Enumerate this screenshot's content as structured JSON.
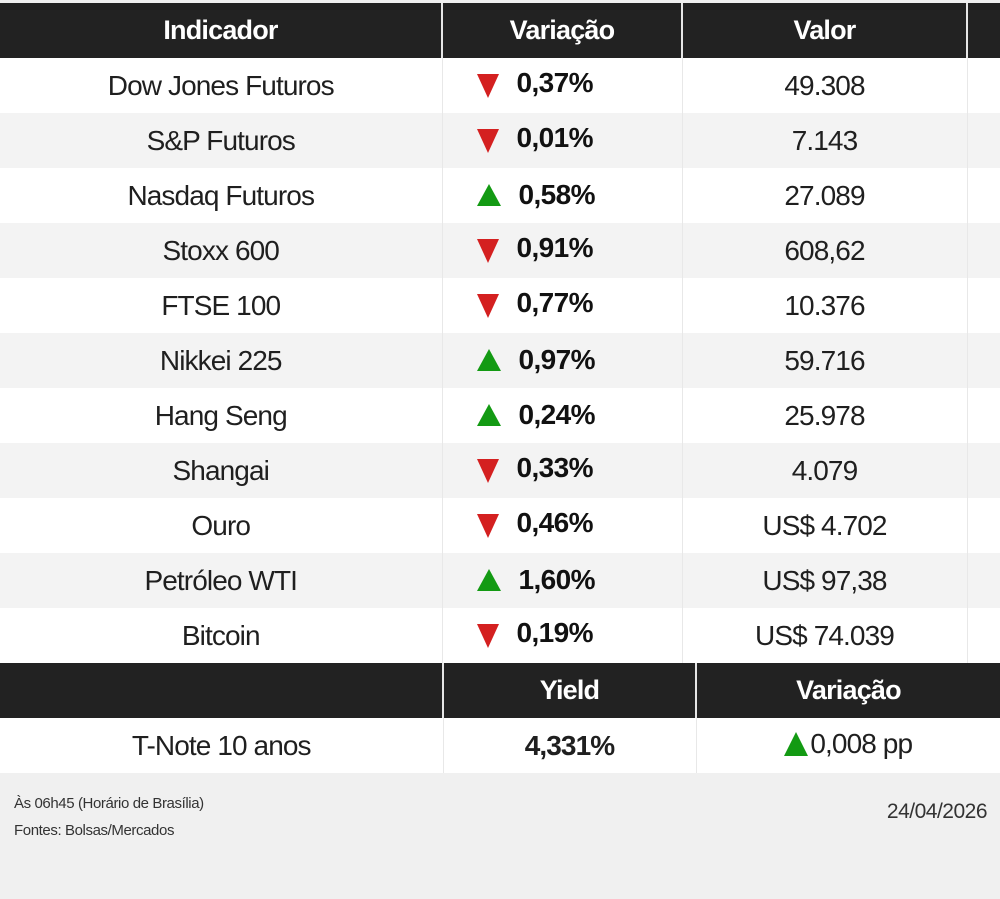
{
  "main_table": {
    "headers": [
      "Indicador",
      "Variação",
      "Valor",
      ""
    ],
    "rows": [
      {
        "indicator": "Dow Jones Futuros",
        "direction": "down",
        "change": "0,37%",
        "value": "49.308"
      },
      {
        "indicator": "S&P Futuros",
        "direction": "down",
        "change": "0,01%",
        "value": "7.143"
      },
      {
        "indicator": "Nasdaq Futuros",
        "direction": "up",
        "change": "0,58%",
        "value": "27.089"
      },
      {
        "indicator": "Stoxx 600",
        "direction": "down",
        "change": "0,91%",
        "value": "608,62"
      },
      {
        "indicator": "FTSE 100",
        "direction": "down",
        "change": "0,77%",
        "value": "10.376"
      },
      {
        "indicator": "Nikkei 225",
        "direction": "up",
        "change": "0,97%",
        "value": "59.716"
      },
      {
        "indicator": "Hang Seng",
        "direction": "up",
        "change": "0,24%",
        "value": "25.978"
      },
      {
        "indicator": "Shangai",
        "direction": "down",
        "change": "0,33%",
        "value": "4.079"
      },
      {
        "indicator": "Ouro",
        "direction": "down",
        "change": "0,46%",
        "value": "US$ 4.702"
      },
      {
        "indicator": "Petróleo WTI",
        "direction": "up",
        "change": "1,60%",
        "value": "US$ 97,38"
      },
      {
        "indicator": "Bitcoin",
        "direction": "down",
        "change": "0,19%",
        "value": "US$ 74.039"
      }
    ]
  },
  "yield_table": {
    "headers": [
      "",
      "Yield",
      "Variação"
    ],
    "rows": [
      {
        "indicator": "T-Note 10 anos",
        "yield": "4,331%",
        "direction": "up",
        "change": "0,008 pp"
      }
    ]
  },
  "footer": {
    "time_note": "Às 06h45 (Horário de Brasília)",
    "sources": "Fontes: Bolsas/Mercados",
    "date": "24/04/2026"
  },
  "colors": {
    "header_bg": "#222222",
    "up": "#139a13",
    "down": "#d42020",
    "row_alt": "#f3f3f3"
  }
}
